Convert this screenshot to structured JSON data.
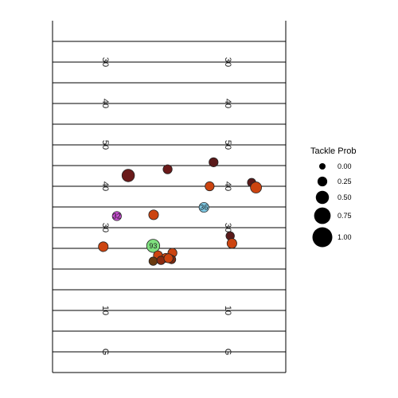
{
  "chart_data": {
    "type": "scatter",
    "title": "",
    "xlabel": "",
    "ylabel": "",
    "xlim": [
      0,
      53.3
    ],
    "ylim": [
      -5,
      80
    ],
    "grid": false,
    "yard_lines": [
      0,
      5,
      10,
      15,
      20,
      25,
      30,
      35,
      40,
      45,
      50,
      55,
      60,
      65,
      70,
      75
    ],
    "yard_labels": [
      {
        "y": 0,
        "text": "G"
      },
      {
        "y": 10,
        "text": "10"
      },
      {
        "y": 30,
        "text": "30"
      },
      {
        "y": 40,
        "text": "40"
      },
      {
        "y": 50,
        "text": "50"
      },
      {
        "y": 60,
        "text": "40"
      },
      {
        "y": 70,
        "text": "30"
      }
    ],
    "legend": {
      "title": "Tackle Prob",
      "placement": "right",
      "items": [
        {
          "label": "0.00",
          "value": 0.0
        },
        {
          "label": "0.25",
          "value": 0.25
        },
        {
          "label": "0.50",
          "value": 0.5
        },
        {
          "label": "0.75",
          "value": 0.75
        },
        {
          "label": "1.00",
          "value": 1.0
        }
      ]
    },
    "points": [
      {
        "x": 36.8,
        "y": 45.8,
        "p": 0.2,
        "color": "#5a1a1a",
        "label": ""
      },
      {
        "x": 26.3,
        "y": 44.1,
        "p": 0.2,
        "color": "#6b1a1a",
        "label": ""
      },
      {
        "x": 17.3,
        "y": 42.6,
        "p": 0.45,
        "color": "#6a1a1a",
        "label": ""
      },
      {
        "x": 45.5,
        "y": 40.9,
        "p": 0.15,
        "color": "#5a1a1a",
        "label": ""
      },
      {
        "x": 35.9,
        "y": 40.0,
        "p": 0.2,
        "color": "#cc4410",
        "label": ""
      },
      {
        "x": 46.5,
        "y": 39.7,
        "p": 0.35,
        "color": "#cc4410",
        "label": ""
      },
      {
        "x": 34.6,
        "y": 34.9,
        "p": 0.25,
        "color": "#7ec8e3",
        "label": "36"
      },
      {
        "x": 14.7,
        "y": 32.8,
        "p": 0.2,
        "color": "#c94fd3",
        "label": "32"
      },
      {
        "x": 23.1,
        "y": 33.1,
        "p": 0.25,
        "color": "#cc4410",
        "label": ""
      },
      {
        "x": 40.6,
        "y": 28.0,
        "p": 0.15,
        "color": "#5a1a1a",
        "label": ""
      },
      {
        "x": 41.0,
        "y": 26.2,
        "p": 0.25,
        "color": "#cc4410",
        "label": ""
      },
      {
        "x": 11.6,
        "y": 25.4,
        "p": 0.25,
        "color": "#cc4410",
        "label": ""
      },
      {
        "x": 23.0,
        "y": 25.6,
        "p": 0.5,
        "color": "#7fe07f",
        "label": "93"
      },
      {
        "x": 27.4,
        "y": 23.9,
        "p": 0.2,
        "color": "#cc4410",
        "label": ""
      },
      {
        "x": 24.1,
        "y": 23.3,
        "p": 0.2,
        "color": "#cc4410",
        "label": ""
      },
      {
        "x": 25.9,
        "y": 22.7,
        "p": 0.2,
        "color": "#cc4410",
        "label": ""
      },
      {
        "x": 23.0,
        "y": 21.9,
        "p": 0.15,
        "color": "#6a3a10",
        "label": ""
      },
      {
        "x": 24.8,
        "y": 22.1,
        "p": 0.15,
        "color": "#8a2a10",
        "label": ""
      },
      {
        "x": 27.2,
        "y": 22.3,
        "p": 0.15,
        "color": "#7a2a10",
        "label": ""
      },
      {
        "x": 26.5,
        "y": 22.6,
        "p": 0.2,
        "color": "#cc4410",
        "label": ""
      }
    ]
  }
}
